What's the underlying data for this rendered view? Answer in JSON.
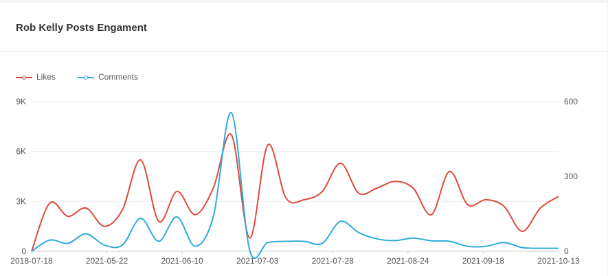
{
  "card": {
    "title": "Rob Kelly Posts Engament"
  },
  "colors": {
    "likes": "#e0483a",
    "comments": "#2eaadc",
    "grid": "#eeeeee",
    "axis": "#cccccc"
  },
  "chart_data": {
    "type": "line",
    "title": "Rob Kelly Posts Engament",
    "legend_position": "top-left",
    "grid": true,
    "x_tick_labels": [
      "2018-07-18",
      "2021-05-22",
      "2021-06-10",
      "2021-07-03",
      "2021-07-28",
      "2021-08-24",
      "2021-09-18",
      "2021-10-13"
    ],
    "y_left": {
      "ticks": [
        "0",
        "3K",
        "6K",
        "9K"
      ],
      "range": [
        0,
        9000
      ]
    },
    "y_right": {
      "ticks": [
        "0",
        "300",
        "600"
      ],
      "range": [
        0,
        600
      ]
    },
    "series": [
      {
        "name": "Likes",
        "axis": "left",
        "values": [
          0,
          2900,
          2100,
          2600,
          1500,
          2500,
          5500,
          1800,
          3600,
          2200,
          3800,
          7000,
          800,
          6400,
          3200,
          3100,
          3600,
          5300,
          3500,
          3800,
          4200,
          3800,
          2200,
          4800,
          2800,
          3100,
          2700,
          1200,
          2600,
          3300
        ]
      },
      {
        "name": "Comments",
        "axis": "right",
        "values": [
          0,
          45,
          32,
          70,
          25,
          25,
          132,
          40,
          138,
          20,
          140,
          555,
          5,
          35,
          40,
          40,
          32,
          120,
          75,
          50,
          43,
          53,
          42,
          40,
          20,
          20,
          35,
          15,
          12,
          12
        ]
      }
    ]
  }
}
